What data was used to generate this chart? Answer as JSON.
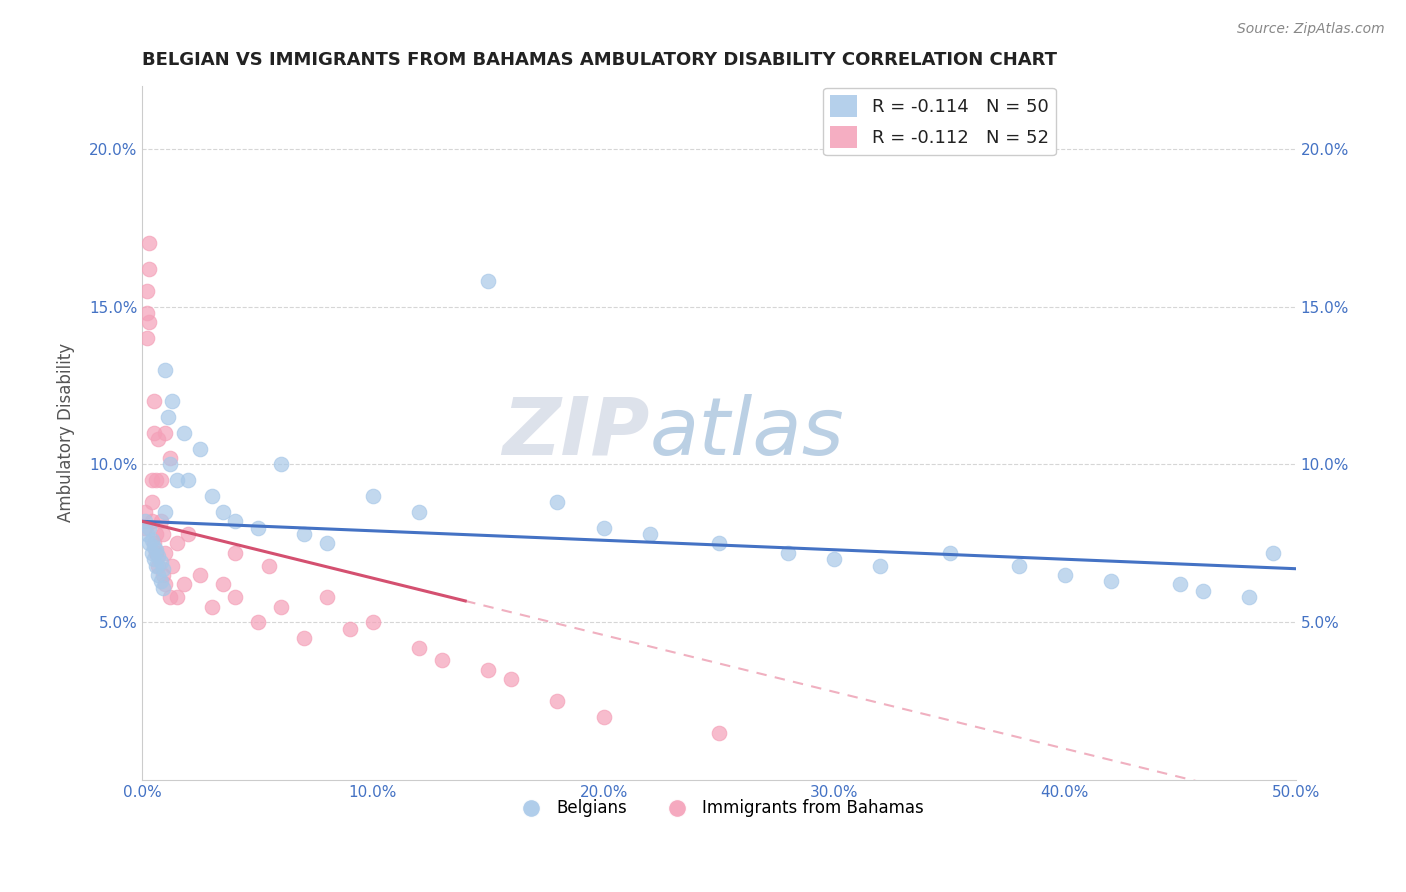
{
  "title": "BELGIAN VS IMMIGRANTS FROM BAHAMAS AMBULATORY DISABILITY CORRELATION CHART",
  "source": "Source: ZipAtlas.com",
  "xlabel": "",
  "ylabel": "Ambulatory Disability",
  "xlim": [
    0.0,
    0.5
  ],
  "ylim": [
    0.0,
    0.22
  ],
  "xticks": [
    0.0,
    0.1,
    0.2,
    0.3,
    0.4,
    0.5
  ],
  "yticks": [
    0.05,
    0.1,
    0.15,
    0.2
  ],
  "xticklabels": [
    "0.0%",
    "10.0%",
    "20.0%",
    "30.0%",
    "40.0%",
    "50.0%"
  ],
  "yticklabels": [
    "5.0%",
    "10.0%",
    "15.0%",
    "20.0%"
  ],
  "watermark_zip": "ZIP",
  "watermark_atlas": "atlas",
  "legend_r1": "R = -0.114",
  "legend_n1": "N = 50",
  "legend_r2": "R = -0.112",
  "legend_n2": "N = 52",
  "legend_title_belgians": "Belgians",
  "legend_title_immigrants": "Immigrants from Bahamas",
  "blue_scatter_color": "#a8c8e8",
  "pink_scatter_color": "#f4a0b8",
  "blue_line_color": "#4472c4",
  "pink_line_color": "#d45070",
  "pink_dash_color": "#f0b0c0",
  "title_color": "#222222",
  "axis_label_color": "#555555",
  "tick_color": "#4472c4",
  "grid_color": "#cccccc",
  "blue_intercept": 0.082,
  "blue_slope": -0.03,
  "pink_intercept": 0.082,
  "pink_slope": -0.18,
  "belgians_x": [
    0.001,
    0.002,
    0.003,
    0.003,
    0.004,
    0.004,
    0.005,
    0.005,
    0.006,
    0.006,
    0.007,
    0.007,
    0.008,
    0.008,
    0.009,
    0.009,
    0.01,
    0.01,
    0.011,
    0.012,
    0.013,
    0.015,
    0.018,
    0.02,
    0.025,
    0.03,
    0.035,
    0.04,
    0.05,
    0.06,
    0.07,
    0.08,
    0.1,
    0.12,
    0.15,
    0.18,
    0.2,
    0.22,
    0.25,
    0.28,
    0.3,
    0.32,
    0.35,
    0.38,
    0.4,
    0.42,
    0.45,
    0.46,
    0.48,
    0.49
  ],
  "belgians_y": [
    0.082,
    0.078,
    0.075,
    0.08,
    0.072,
    0.076,
    0.07,
    0.074,
    0.068,
    0.073,
    0.065,
    0.071,
    0.063,
    0.069,
    0.061,
    0.067,
    0.085,
    0.13,
    0.115,
    0.1,
    0.12,
    0.095,
    0.11,
    0.095,
    0.105,
    0.09,
    0.085,
    0.082,
    0.08,
    0.1,
    0.078,
    0.075,
    0.09,
    0.085,
    0.158,
    0.088,
    0.08,
    0.078,
    0.075,
    0.072,
    0.07,
    0.068,
    0.072,
    0.068,
    0.065,
    0.063,
    0.062,
    0.06,
    0.058,
    0.072
  ],
  "immigrants_x": [
    0.001,
    0.001,
    0.002,
    0.002,
    0.002,
    0.003,
    0.003,
    0.003,
    0.004,
    0.004,
    0.004,
    0.005,
    0.005,
    0.005,
    0.006,
    0.006,
    0.006,
    0.007,
    0.007,
    0.008,
    0.008,
    0.009,
    0.009,
    0.01,
    0.01,
    0.01,
    0.012,
    0.012,
    0.013,
    0.015,
    0.015,
    0.018,
    0.02,
    0.025,
    0.03,
    0.035,
    0.04,
    0.04,
    0.05,
    0.055,
    0.06,
    0.07,
    0.08,
    0.09,
    0.1,
    0.12,
    0.13,
    0.15,
    0.16,
    0.18,
    0.2,
    0.25
  ],
  "immigrants_y": [
    0.085,
    0.08,
    0.155,
    0.148,
    0.14,
    0.17,
    0.162,
    0.145,
    0.095,
    0.088,
    0.082,
    0.075,
    0.12,
    0.11,
    0.078,
    0.072,
    0.095,
    0.068,
    0.108,
    0.082,
    0.095,
    0.065,
    0.078,
    0.062,
    0.072,
    0.11,
    0.058,
    0.102,
    0.068,
    0.058,
    0.075,
    0.062,
    0.078,
    0.065,
    0.055,
    0.062,
    0.058,
    0.072,
    0.05,
    0.068,
    0.055,
    0.045,
    0.058,
    0.048,
    0.05,
    0.042,
    0.038,
    0.035,
    0.032,
    0.025,
    0.02,
    0.015
  ]
}
